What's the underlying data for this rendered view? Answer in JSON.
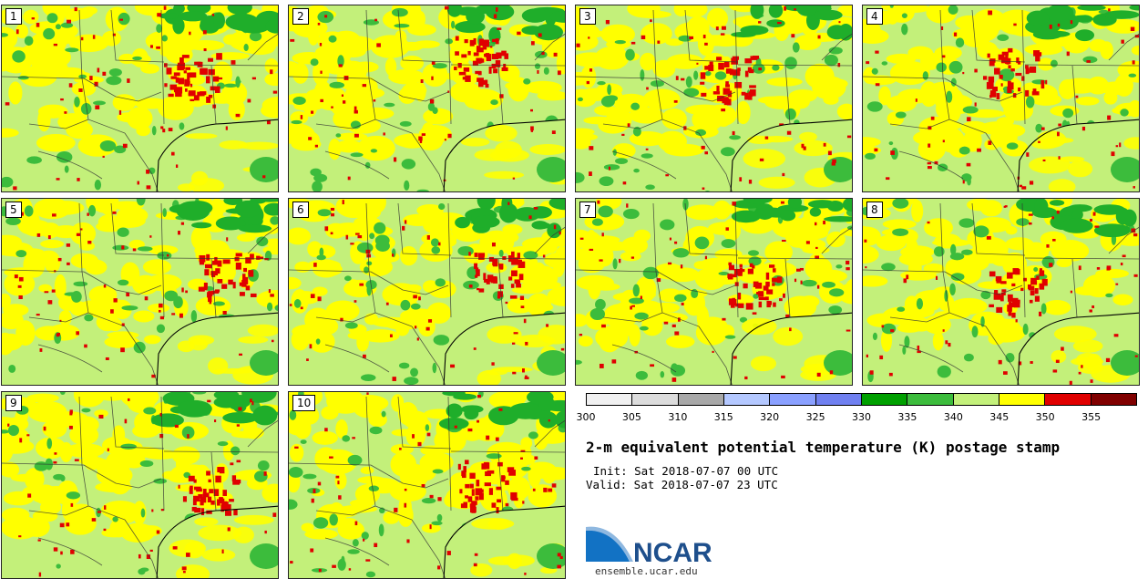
{
  "figure": {
    "title": "2-m equivalent potential temperature (K) postage stamp",
    "init": "Init: Sat 2018-07-07 00 UTC",
    "valid": "Valid: Sat 2018-07-07 23 UTC"
  },
  "panels": [
    {
      "label": "1"
    },
    {
      "label": "2"
    },
    {
      "label": "3"
    },
    {
      "label": "4"
    },
    {
      "label": "5"
    },
    {
      "label": "6"
    },
    {
      "label": "7"
    },
    {
      "label": "8"
    },
    {
      "label": "9"
    },
    {
      "label": "10"
    }
  ],
  "colorbar": {
    "ticks": [
      "300",
      "305",
      "310",
      "315",
      "320",
      "325",
      "330",
      "335",
      "340",
      "345",
      "350",
      "355"
    ],
    "colors": [
      "#f0f0f0",
      "#dcdcdc",
      "#a8a8a8",
      "#b4c8ff",
      "#8aa0ff",
      "#7080f0",
      "#00a000",
      "#3cbc3c",
      "#c3f07a",
      "#ffff00",
      "#e00000",
      "#800000"
    ]
  },
  "logo": {
    "text": "NCAR",
    "url": "ensemble.ucar.edu",
    "text_color": "#1e4f8c",
    "swoosh_color": "#1272c4"
  },
  "map_colors": {
    "base": "#c3f07a",
    "yellow": "#ffff00",
    "green": "#3cbc3c",
    "dark_green": "#1fae2a",
    "red": "#e00000",
    "boundary": "#333333"
  }
}
